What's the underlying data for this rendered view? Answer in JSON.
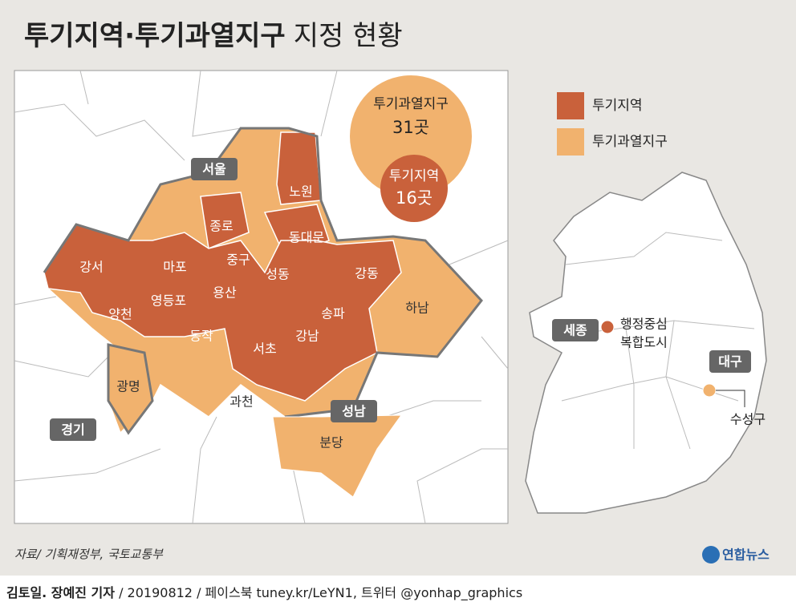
{
  "title": "투기지역·투기과열지구",
  "title_suffix": "지정 현황",
  "circle": {
    "outer_label": "투기과열지구",
    "outer_count": "31곳",
    "inner_label": "투기지역",
    "inner_count": "16곳"
  },
  "legend": [
    "투기지역",
    "투기과열지구"
  ],
  "region_tags": [
    "서울",
    "성남",
    "경기"
  ],
  "districts": [
    "노원",
    "종로",
    "동대문",
    "강서",
    "마포",
    "중구",
    "성동",
    "강동",
    "양천",
    "영등포",
    "용산",
    "송파",
    "하남",
    "동작",
    "서초",
    "강남",
    "광명",
    "과천",
    "분당"
  ],
  "korea": {
    "tags": [
      "세종",
      "대구"
    ],
    "sejong_label": [
      "행정중심",
      "복합도시"
    ],
    "daegu_label": "수성구"
  },
  "source": "자료/ 기획재정부, 국토교통부",
  "logo": "연합뉴스",
  "footer": {
    "author": "김토일. 장예진 기자",
    "info": " / 20190812 / 페이스북 tuney.kr/LeYN1, 트위터 @yonhap_graphics"
  }
}
